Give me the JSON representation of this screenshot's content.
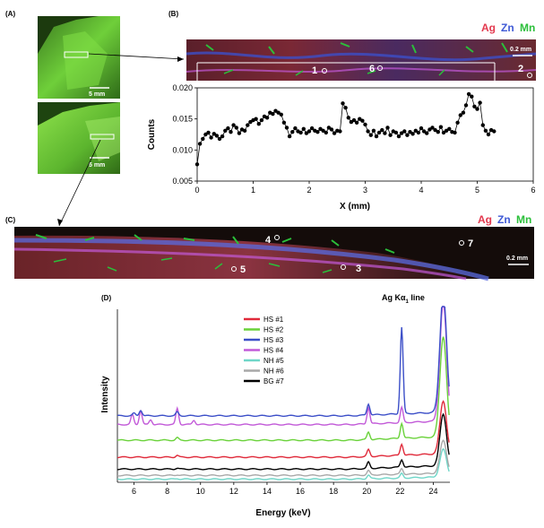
{
  "panel_labels": {
    "a": "(A)",
    "b": "(B)",
    "c": "(C)",
    "d": "(D)"
  },
  "photo_scale_bar": "5 mm",
  "map_scale_bar": "0.2 mm",
  "map_legend": [
    {
      "label": "Ag",
      "color": "#e33a4f"
    },
    {
      "label": "Zn",
      "color": "#3f5ad6"
    },
    {
      "label": "Mn",
      "color": "#2bbf3a"
    }
  ],
  "points_b": [
    "1",
    "6",
    "2"
  ],
  "points_c": [
    "4",
    "7",
    "5",
    "3"
  ],
  "annotation_d": "Ag Kα",
  "annotation_d_sub": "1",
  "annotation_d_suffix": " line",
  "colors": {
    "map_bg": "#2a1a10",
    "photo_green": "#6fcf3a",
    "marker": "#000000"
  },
  "chart_data": [
    {
      "type": "line",
      "xlabel": "X (mm)",
      "ylabel": "Counts",
      "xlim": [
        0,
        6
      ],
      "ylim": [
        0.005,
        0.02
      ],
      "xticks": [
        "0",
        "1",
        "2",
        "3",
        "4",
        "5",
        "6"
      ],
      "yticks": [
        "0.005",
        "0.010",
        "0.015",
        "0.020"
      ],
      "series": [
        {
          "x": [
            0.0,
            0.05,
            0.1,
            0.15,
            0.2,
            0.25,
            0.3,
            0.35,
            0.4,
            0.45,
            0.5,
            0.55,
            0.6,
            0.65,
            0.7,
            0.75,
            0.8,
            0.85,
            0.9,
            0.95,
            1.0,
            1.05,
            1.1,
            1.15,
            1.2,
            1.25,
            1.3,
            1.35,
            1.4,
            1.45,
            1.5,
            1.55,
            1.6,
            1.65,
            1.7,
            1.75,
            1.8,
            1.85,
            1.9,
            1.95,
            2.0,
            2.05,
            2.1,
            2.15,
            2.2,
            2.25,
            2.3,
            2.35,
            2.4,
            2.45,
            2.5,
            2.55,
            2.6,
            2.65,
            2.7,
            2.75,
            2.8,
            2.85,
            2.9,
            2.95,
            3.0,
            3.05,
            3.1,
            3.15,
            3.2,
            3.25,
            3.3,
            3.35,
            3.4,
            3.45,
            3.5,
            3.55,
            3.6,
            3.65,
            3.7,
            3.75,
            3.8,
            3.85,
            3.9,
            3.95,
            4.0,
            4.05,
            4.1,
            4.15,
            4.2,
            4.25,
            4.3,
            4.35,
            4.4,
            4.45,
            4.5,
            4.55,
            4.6,
            4.65,
            4.7,
            4.75,
            4.8,
            4.85,
            4.9,
            4.95,
            5.0,
            5.05,
            5.1,
            5.15,
            5.2,
            5.25,
            5.3
          ],
          "values": [
            0.0077,
            0.011,
            0.0118,
            0.0125,
            0.0128,
            0.012,
            0.0126,
            0.0123,
            0.0118,
            0.0122,
            0.0131,
            0.0135,
            0.0129,
            0.014,
            0.0136,
            0.0127,
            0.0133,
            0.0131,
            0.014,
            0.0145,
            0.0148,
            0.015,
            0.0142,
            0.0148,
            0.0154,
            0.0152,
            0.016,
            0.0158,
            0.0163,
            0.016,
            0.0157,
            0.0144,
            0.0136,
            0.0122,
            0.0129,
            0.0135,
            0.013,
            0.0128,
            0.0134,
            0.0127,
            0.013,
            0.0135,
            0.0131,
            0.0129,
            0.0134,
            0.0131,
            0.0128,
            0.0136,
            0.0133,
            0.0127,
            0.0131,
            0.013,
            0.0175,
            0.0168,
            0.0152,
            0.0145,
            0.0148,
            0.0144,
            0.015,
            0.0147,
            0.0141,
            0.013,
            0.0124,
            0.0131,
            0.0122,
            0.0128,
            0.0132,
            0.0127,
            0.0136,
            0.0124,
            0.013,
            0.0128,
            0.0122,
            0.0127,
            0.013,
            0.0124,
            0.0129,
            0.0126,
            0.0131,
            0.0128,
            0.0135,
            0.013,
            0.0127,
            0.0133,
            0.0136,
            0.0132,
            0.0129,
            0.0137,
            0.0128,
            0.0131,
            0.0134,
            0.0129,
            0.0128,
            0.0144,
            0.0156,
            0.016,
            0.0172,
            0.019,
            0.0186,
            0.017,
            0.0166,
            0.0176,
            0.014,
            0.0131,
            0.0125,
            0.0132,
            0.013
          ]
        }
      ]
    },
    {
      "type": "line",
      "xlabel": "Energy (keV)",
      "ylabel": "Intensity",
      "xlim": [
        5,
        25
      ],
      "ylim": [
        0,
        14
      ],
      "xticks": [
        "6",
        "8",
        "10",
        "12",
        "14",
        "16",
        "18",
        "20",
        "22",
        "24"
      ],
      "legend_position": "top-left",
      "series": [
        {
          "name": "HS #1",
          "color": "#e02a3a",
          "baseline": 2.0,
          "peaks": [
            [
              8.6,
              0.15
            ],
            [
              20.1,
              0.55
            ],
            [
              22.1,
              0.9
            ],
            [
              24.6,
              4.2
            ]
          ]
        },
        {
          "name": "HS #2",
          "color": "#6ad23a",
          "baseline": 3.35,
          "peaks": [
            [
              8.6,
              0.2
            ],
            [
              20.1,
              0.6
            ],
            [
              22.1,
              1.2
            ],
            [
              24.6,
              8.0
            ]
          ]
        },
        {
          "name": "HS #3",
          "color": "#3c4fc8",
          "baseline": 5.3,
          "peaks": [
            [
              6.0,
              0.2
            ],
            [
              6.4,
              0.45
            ],
            [
              8.6,
              0.3
            ],
            [
              20.1,
              0.9
            ],
            [
              22.1,
              6.9
            ],
            [
              24.6,
              9.5
            ]
          ]
        },
        {
          "name": "HS #4",
          "color": "#c25ad8",
          "baseline": 4.6,
          "peaks": [
            [
              5.9,
              0.8
            ],
            [
              6.4,
              1.1
            ],
            [
              7.0,
              0.4
            ],
            [
              8.6,
              1.3
            ],
            [
              9.6,
              0.35
            ],
            [
              20.1,
              1.3
            ],
            [
              22.1,
              1.2
            ],
            [
              24.6,
              9.5
            ]
          ]
        },
        {
          "name": "NH #5",
          "color": "#6fd6c8",
          "baseline": 0.25,
          "peaks": [
            [
              8.6,
              0.05
            ],
            [
              20.1,
              0.3
            ],
            [
              22.1,
              0.35
            ],
            [
              24.6,
              2.2
            ]
          ]
        },
        {
          "name": "NH #6",
          "color": "#a8a8a8",
          "baseline": 0.55,
          "peaks": [
            [
              8.6,
              0.05
            ],
            [
              20.1,
              0.35
            ],
            [
              22.1,
              0.45
            ],
            [
              24.6,
              2.6
            ]
          ]
        },
        {
          "name": "BG #7",
          "color": "#000000",
          "baseline": 1.05,
          "peaks": [
            [
              8.6,
              0.08
            ],
            [
              20.1,
              0.5
            ],
            [
              22.1,
              0.6
            ],
            [
              24.6,
              4.1
            ]
          ]
        }
      ]
    }
  ]
}
